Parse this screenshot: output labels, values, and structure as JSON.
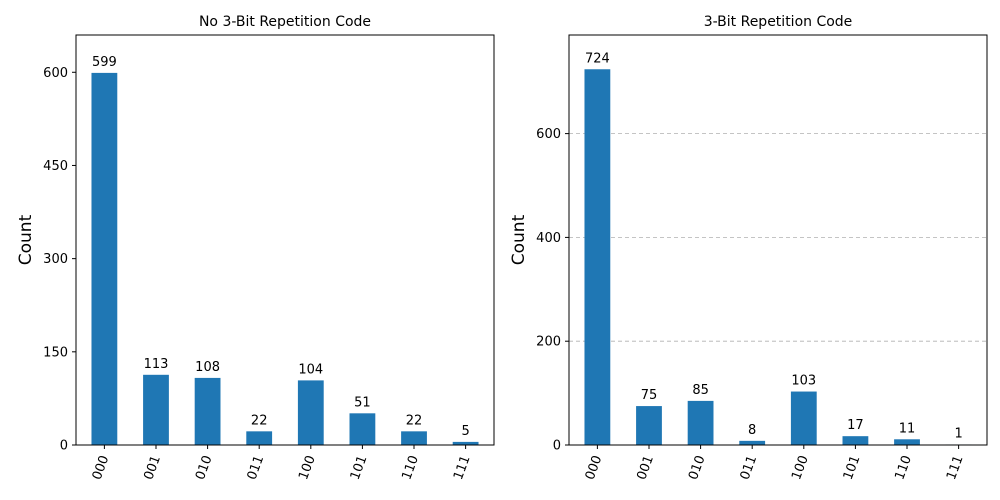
{
  "chart_data": [
    {
      "type": "bar",
      "title": "No 3-Bit Repetition Code",
      "ylabel": "Count",
      "xlabel": "",
      "categories": [
        "000",
        "001",
        "010",
        "011",
        "100",
        "101",
        "110",
        "111"
      ],
      "values": [
        599,
        113,
        108,
        22,
        104,
        51,
        22,
        5
      ],
      "yticks": [
        0,
        150,
        300,
        450,
        600
      ],
      "ylim": [
        0,
        660
      ],
      "grid": false,
      "color": "#1f77b4"
    },
    {
      "type": "bar",
      "title": "3-Bit Repetition Code",
      "ylabel": "Count",
      "xlabel": "",
      "categories": [
        "000",
        "001",
        "010",
        "011",
        "100",
        "101",
        "110",
        "111"
      ],
      "values": [
        724,
        75,
        85,
        8,
        103,
        17,
        11,
        1
      ],
      "yticks": [
        0,
        200,
        400,
        600
      ],
      "ylim": [
        0,
        790
      ],
      "grid": true,
      "color": "#1f77b4"
    }
  ]
}
